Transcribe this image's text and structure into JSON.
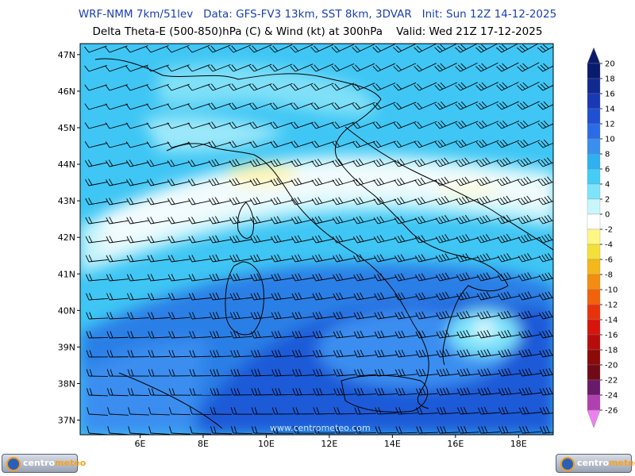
{
  "header": {
    "line1": "WRF-NMM 7km/51lev   Data: GFS-FV3 13km, SST 8km, 3DVAR   Init: Sun 12Z 14-12-2025",
    "line2": "Delta Theta-E (500-850)hPa (C) & Wind (kt) at 300hPa    Valid: Wed 21Z 17-12-2025"
  },
  "axes": {
    "lat_labels": [
      "47N",
      "46N",
      "45N",
      "44N",
      "43N",
      "42N",
      "41N",
      "40N",
      "39N",
      "38N",
      "37N"
    ],
    "lat_values": [
      47,
      46,
      45,
      44,
      43,
      42,
      41,
      40,
      39,
      38,
      37
    ],
    "lon_labels": [
      "6E",
      "8E",
      "10E",
      "12E",
      "14E",
      "16E",
      "18E"
    ],
    "lon_values": [
      6,
      8,
      10,
      12,
      14,
      16,
      18
    ],
    "extent": {
      "lon_min": 4.1,
      "lon_max": 19.1,
      "lat_min": 36.6,
      "lat_max": 47.3
    }
  },
  "colorbar": {
    "labels": [
      "20",
      "18",
      "16",
      "14",
      "12",
      "10",
      "8",
      "6",
      "4",
      "2",
      "0",
      "-2",
      "-4",
      "-6",
      "-8",
      "-10",
      "-12",
      "-14",
      "-16",
      "-18",
      "-20",
      "-22",
      "-24",
      "-26"
    ],
    "colors": [
      "#0a1b6e",
      "#102a92",
      "#1838b6",
      "#1f4fd4",
      "#2b6ce6",
      "#3a8ef0",
      "#2fb0f2",
      "#44cdf6",
      "#7ee4fa",
      "#c8f6fb",
      "#ffffff",
      "#fff685",
      "#f4e03a",
      "#f4b81a",
      "#f38c10",
      "#f2620c",
      "#e8320c",
      "#d8140c",
      "#b80c0c",
      "#8c0a0a",
      "#700a18",
      "#6a1a6a",
      "#b040b0",
      "#f080f0"
    ]
  },
  "watermark": "www.centrometeo.com",
  "logo": {
    "part1": "centro",
    "part2": "meteo"
  },
  "colors": {
    "sea_mid": "#35c2f4",
    "sea_deep": "#1f58d8",
    "land_light": "#dff7fb"
  }
}
